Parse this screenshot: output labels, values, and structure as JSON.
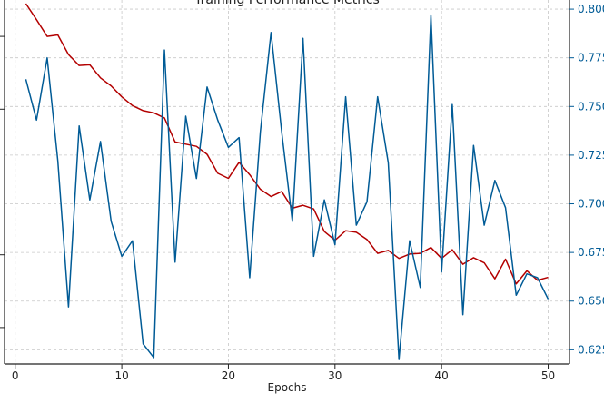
{
  "chart_data": {
    "type": "line",
    "title": "Training Performance Metrics",
    "xlabel": "Epochs",
    "ylabel": "",
    "xlim": [
      -1,
      52
    ],
    "x_ticks": [
      0,
      10,
      20,
      30,
      40,
      50
    ],
    "y_right": {
      "lim": [
        0.6177,
        0.8047
      ],
      "ticks": [
        0.625,
        0.65,
        0.675,
        0.7,
        0.725,
        0.75,
        0.775,
        0.8
      ],
      "tick_labels": [
        "0.625",
        "0.650",
        "0.675",
        "0.700",
        "0.725",
        "0.750",
        "0.775",
        "0.800"
      ],
      "color": "#005b96"
    },
    "y_left": {
      "lim": [
        0.4,
        0.9
      ],
      "ticks": [
        0.45,
        0.55,
        0.65,
        0.75,
        0.85
      ],
      "tick_labels": [],
      "color": "#b30000"
    },
    "grid": true,
    "x": [
      1,
      2,
      3,
      4,
      5,
      6,
      7,
      8,
      9,
      10,
      11,
      12,
      13,
      14,
      15,
      16,
      17,
      18,
      19,
      20,
      21,
      22,
      23,
      24,
      25,
      26,
      27,
      28,
      29,
      30,
      31,
      32,
      33,
      34,
      35,
      36,
      37,
      38,
      39,
      40,
      41,
      42,
      43,
      44,
      45,
      46,
      47,
      48,
      49,
      50
    ],
    "series": [
      {
        "color": "#b30000",
        "axis": "left",
        "values": [
          0.895,
          0.873,
          0.85,
          0.852,
          0.825,
          0.81,
          0.811,
          0.793,
          0.782,
          0.767,
          0.755,
          0.748,
          0.745,
          0.738,
          0.705,
          0.702,
          0.699,
          0.688,
          0.662,
          0.655,
          0.677,
          0.66,
          0.64,
          0.63,
          0.637,
          0.614,
          0.618,
          0.613,
          0.582,
          0.57,
          0.583,
          0.581,
          0.571,
          0.552,
          0.556,
          0.545,
          0.551,
          0.552,
          0.56,
          0.545,
          0.557,
          0.537,
          0.546,
          0.539,
          0.517,
          0.544,
          0.51,
          0.528,
          0.515,
          0.519
        ]
      },
      {
        "color": "#005b96",
        "axis": "right",
        "values": [
          0.764,
          0.743,
          0.775,
          0.722,
          0.647,
          0.74,
          0.702,
          0.732,
          0.691,
          0.673,
          0.681,
          0.628,
          0.621,
          0.779,
          0.67,
          0.745,
          0.713,
          0.76,
          0.743,
          0.729,
          0.734,
          0.662,
          0.737,
          0.788,
          0.737,
          0.691,
          0.785,
          0.673,
          0.702,
          0.679,
          0.755,
          0.689,
          0.701,
          0.755,
          0.721,
          0.62,
          0.681,
          0.657,
          0.797,
          0.665,
          0.751,
          0.643,
          0.73,
          0.689,
          0.712,
          0.698,
          0.653,
          0.664,
          0.662,
          0.651
        ]
      }
    ]
  }
}
